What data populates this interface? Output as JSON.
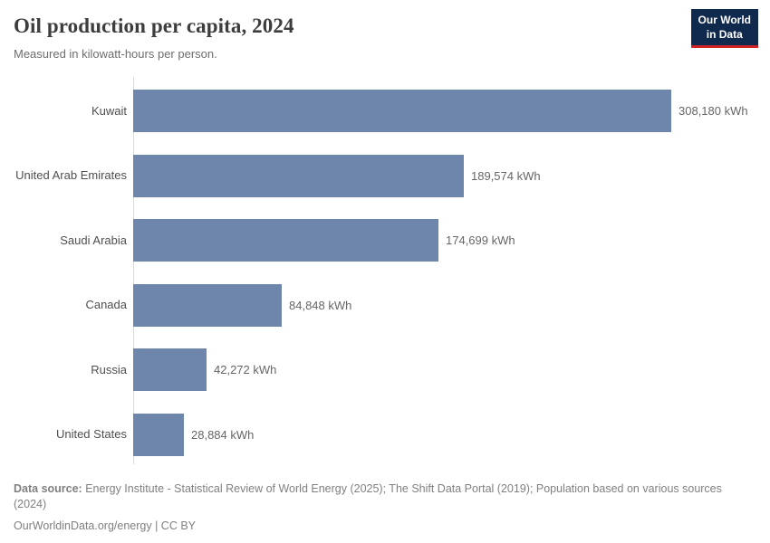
{
  "header": {
    "title": "Oil production per capita, 2024",
    "subtitle": "Measured in kilowatt-hours per person.",
    "logo": {
      "line1": "Our World",
      "line2": "in Data"
    }
  },
  "chart_data": {
    "type": "bar",
    "orientation": "horizontal",
    "title": "Oil production per capita, 2024",
    "unit": "kWh",
    "categories": [
      "Kuwait",
      "United Arab Emirates",
      "Saudi Arabia",
      "Canada",
      "Russia",
      "United States"
    ],
    "values": [
      308180,
      189574,
      174699,
      84848,
      42272,
      28884
    ],
    "value_labels": [
      "308,180 kWh",
      "189,574 kWh",
      "174,699 kWh",
      "84,848 kWh",
      "42,272 kWh",
      "28,884 kWh"
    ],
    "xlim": [
      0,
      308180
    ],
    "grid": false,
    "legend": false,
    "bar_color": "#6e86ac"
  },
  "footer": {
    "source_label": "Data source:",
    "source_text": " Energy Institute - Statistical Review of World Energy (2025); The Shift Data Portal (2019); Population based on various sources",
    "source_line2": "(2024)",
    "citation": "OurWorldinData.org/energy | CC BY"
  },
  "colors": {
    "bar": "#6e86ac",
    "axis": "#dcdcdc",
    "title": "#3d3d3d",
    "logo_navy": "#102a4e",
    "logo_red": "#cf2428"
  }
}
